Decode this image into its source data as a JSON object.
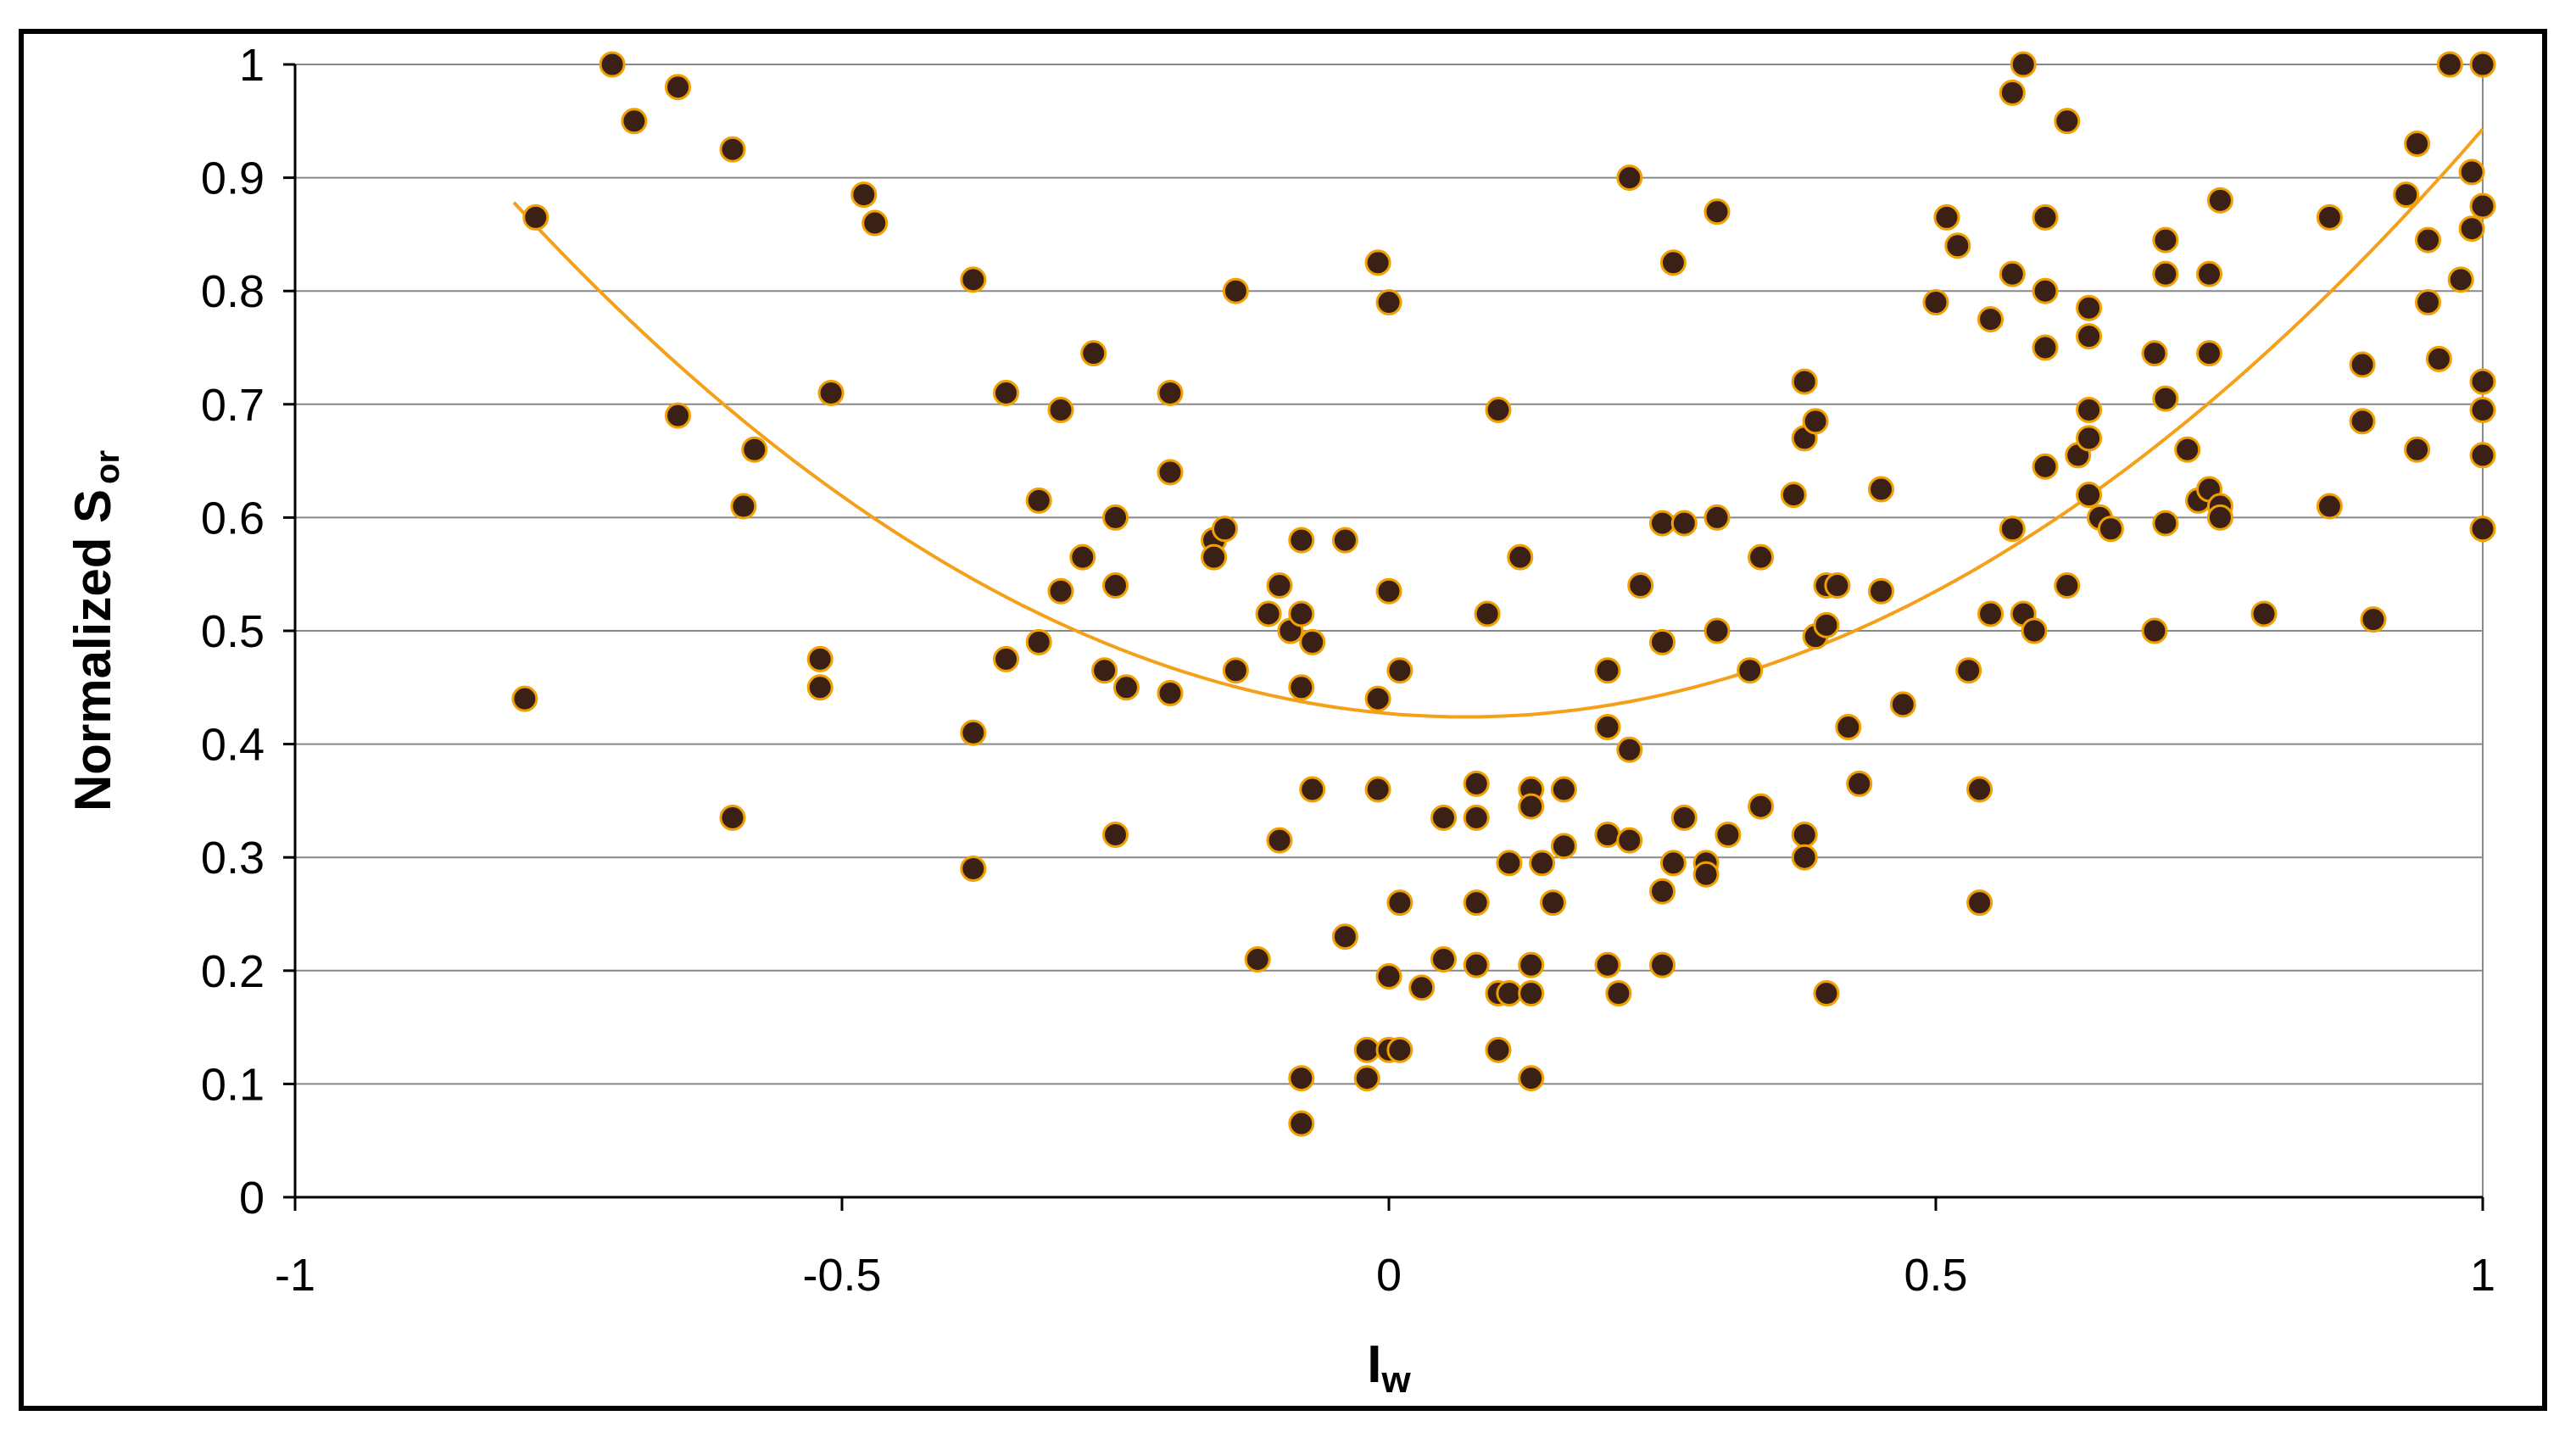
{
  "chart_data": {
    "type": "scatter",
    "title": "",
    "xlabel": "I",
    "xlabel_subscript": "w",
    "ylabel": "Normalized S",
    "ylabel_subscript": "or",
    "xlim": [
      -1,
      1
    ],
    "ylim": [
      0,
      1
    ],
    "xticks": [
      -1,
      -0.5,
      0,
      0.5,
      1
    ],
    "xtick_labels": [
      "-1",
      "-0.5",
      "0",
      "0.5",
      "1"
    ],
    "yticks": [
      0,
      0.1,
      0.2,
      0.3,
      0.4,
      0.5,
      0.6,
      0.7,
      0.8,
      0.9,
      1
    ],
    "ytick_labels": [
      "0",
      "0.1",
      "0.2",
      "0.3",
      "0.4",
      "0.5",
      "0.6",
      "0.7",
      "0.8",
      "0.9",
      "1"
    ],
    "grid": {
      "horizontal": true,
      "vertical": false
    },
    "legend": "none",
    "colors": {
      "marker_fill": "#3b2016",
      "marker_edge": "#f0a000",
      "trend": "#f5a01a",
      "grid": "#888888",
      "axis": "#000000"
    },
    "series": [
      {
        "kind": "points",
        "points": [
          [
            -0.79,
            0.44
          ],
          [
            -0.78,
            0.865
          ],
          [
            -0.71,
            1.0
          ],
          [
            -0.69,
            0.95
          ],
          [
            -0.65,
            0.98
          ],
          [
            -0.65,
            0.69
          ],
          [
            -0.6,
            0.925
          ],
          [
            -0.6,
            0.335
          ],
          [
            -0.59,
            0.61
          ],
          [
            -0.58,
            0.66
          ],
          [
            -0.52,
            0.475
          ],
          [
            -0.52,
            0.45
          ],
          [
            -0.51,
            0.71
          ],
          [
            -0.48,
            0.885
          ],
          [
            -0.47,
            0.86
          ],
          [
            -0.38,
            0.81
          ],
          [
            -0.38,
            0.41
          ],
          [
            -0.38,
            0.29
          ],
          [
            -0.35,
            0.71
          ],
          [
            -0.35,
            0.475
          ],
          [
            -0.32,
            0.615
          ],
          [
            -0.32,
            0.49
          ],
          [
            -0.3,
            0.695
          ],
          [
            -0.3,
            0.535
          ],
          [
            -0.28,
            0.565
          ],
          [
            -0.27,
            0.745
          ],
          [
            -0.26,
            0.465
          ],
          [
            -0.25,
            0.6
          ],
          [
            -0.25,
            0.54
          ],
          [
            -0.25,
            0.32
          ],
          [
            -0.24,
            0.45
          ],
          [
            -0.2,
            0.71
          ],
          [
            -0.2,
            0.64
          ],
          [
            -0.2,
            0.445
          ],
          [
            -0.16,
            0.58
          ],
          [
            -0.16,
            0.565
          ],
          [
            -0.15,
            0.59
          ],
          [
            -0.14,
            0.8
          ],
          [
            -0.14,
            0.465
          ],
          [
            -0.12,
            0.21
          ],
          [
            -0.11,
            0.515
          ],
          [
            -0.1,
            0.54
          ],
          [
            -0.1,
            0.315
          ],
          [
            -0.09,
            0.5
          ],
          [
            -0.08,
            0.58
          ],
          [
            -0.08,
            0.515
          ],
          [
            -0.08,
            0.45
          ],
          [
            -0.08,
            0.105
          ],
          [
            -0.08,
            0.065
          ],
          [
            -0.07,
            0.49
          ],
          [
            -0.07,
            0.36
          ],
          [
            -0.04,
            0.58
          ],
          [
            -0.04,
            0.23
          ],
          [
            -0.02,
            0.13
          ],
          [
            -0.02,
            0.105
          ],
          [
            -0.01,
            0.825
          ],
          [
            -0.01,
            0.44
          ],
          [
            -0.01,
            0.36
          ],
          [
            0.0,
            0.79
          ],
          [
            0.0,
            0.535
          ],
          [
            0.0,
            0.195
          ],
          [
            0.0,
            0.13
          ],
          [
            0.01,
            0.465
          ],
          [
            0.01,
            0.26
          ],
          [
            0.01,
            0.13
          ],
          [
            0.03,
            0.185
          ],
          [
            0.05,
            0.335
          ],
          [
            0.05,
            0.21
          ],
          [
            0.08,
            0.365
          ],
          [
            0.08,
            0.335
          ],
          [
            0.08,
            0.26
          ],
          [
            0.08,
            0.205
          ],
          [
            0.09,
            0.515
          ],
          [
            0.1,
            0.695
          ],
          [
            0.1,
            0.18
          ],
          [
            0.1,
            0.13
          ],
          [
            0.11,
            0.295
          ],
          [
            0.11,
            0.18
          ],
          [
            0.12,
            0.565
          ],
          [
            0.13,
            0.36
          ],
          [
            0.13,
            0.345
          ],
          [
            0.13,
            0.205
          ],
          [
            0.13,
            0.18
          ],
          [
            0.13,
            0.105
          ],
          [
            0.14,
            0.295
          ],
          [
            0.15,
            0.26
          ],
          [
            0.16,
            0.36
          ],
          [
            0.16,
            0.31
          ],
          [
            0.2,
            0.465
          ],
          [
            0.2,
            0.415
          ],
          [
            0.2,
            0.32
          ],
          [
            0.2,
            0.205
          ],
          [
            0.21,
            0.18
          ],
          [
            0.22,
            0.9
          ],
          [
            0.22,
            0.395
          ],
          [
            0.22,
            0.315
          ],
          [
            0.23,
            0.54
          ],
          [
            0.25,
            0.595
          ],
          [
            0.25,
            0.49
          ],
          [
            0.25,
            0.27
          ],
          [
            0.25,
            0.205
          ],
          [
            0.26,
            0.825
          ],
          [
            0.26,
            0.295
          ],
          [
            0.27,
            0.595
          ],
          [
            0.27,
            0.335
          ],
          [
            0.29,
            0.295
          ],
          [
            0.29,
            0.285
          ],
          [
            0.3,
            0.87
          ],
          [
            0.3,
            0.6
          ],
          [
            0.3,
            0.5
          ],
          [
            0.31,
            0.32
          ],
          [
            0.33,
            0.465
          ],
          [
            0.34,
            0.565
          ],
          [
            0.34,
            0.345
          ],
          [
            0.37,
            0.62
          ],
          [
            0.38,
            0.32
          ],
          [
            0.38,
            0.3
          ],
          [
            0.38,
            0.72
          ],
          [
            0.38,
            0.67
          ],
          [
            0.39,
            0.685
          ],
          [
            0.39,
            0.495
          ],
          [
            0.4,
            0.54
          ],
          [
            0.4,
            0.505
          ],
          [
            0.4,
            0.18
          ],
          [
            0.41,
            0.54
          ],
          [
            0.42,
            0.415
          ],
          [
            0.43,
            0.365
          ],
          [
            0.45,
            0.625
          ],
          [
            0.45,
            0.535
          ],
          [
            0.47,
            0.435
          ],
          [
            0.5,
            0.79
          ],
          [
            0.51,
            0.865
          ],
          [
            0.52,
            0.84
          ],
          [
            0.53,
            0.465
          ],
          [
            0.54,
            0.36
          ],
          [
            0.54,
            0.26
          ],
          [
            0.55,
            0.515
          ],
          [
            0.55,
            0.775
          ],
          [
            0.57,
            0.975
          ],
          [
            0.57,
            0.815
          ],
          [
            0.57,
            0.59
          ],
          [
            0.58,
            1.0
          ],
          [
            0.58,
            0.515
          ],
          [
            0.59,
            0.5
          ],
          [
            0.6,
            0.865
          ],
          [
            0.6,
            0.8
          ],
          [
            0.6,
            0.75
          ],
          [
            0.6,
            0.645
          ],
          [
            0.62,
            0.95
          ],
          [
            0.62,
            0.54
          ],
          [
            0.63,
            0.655
          ],
          [
            0.64,
            0.785
          ],
          [
            0.64,
            0.76
          ],
          [
            0.64,
            0.695
          ],
          [
            0.64,
            0.67
          ],
          [
            0.64,
            0.62
          ],
          [
            0.65,
            0.6
          ],
          [
            0.66,
            0.59
          ],
          [
            0.7,
            0.745
          ],
          [
            0.7,
            0.5
          ],
          [
            0.71,
            0.845
          ],
          [
            0.71,
            0.815
          ],
          [
            0.71,
            0.705
          ],
          [
            0.71,
            0.595
          ],
          [
            0.73,
            0.66
          ],
          [
            0.74,
            0.615
          ],
          [
            0.75,
            0.815
          ],
          [
            0.75,
            0.745
          ],
          [
            0.75,
            0.625
          ],
          [
            0.76,
            0.88
          ],
          [
            0.76,
            0.61
          ],
          [
            0.76,
            0.6
          ],
          [
            0.8,
            0.515
          ],
          [
            0.86,
            0.865
          ],
          [
            0.86,
            0.61
          ],
          [
            0.89,
            0.735
          ],
          [
            0.89,
            0.685
          ],
          [
            0.9,
            0.51
          ],
          [
            0.93,
            0.885
          ],
          [
            0.94,
            0.93
          ],
          [
            0.94,
            0.66
          ],
          [
            0.95,
            0.845
          ],
          [
            0.95,
            0.79
          ],
          [
            0.96,
            0.74
          ],
          [
            0.97,
            1.0
          ],
          [
            0.98,
            0.81
          ],
          [
            0.99,
            0.905
          ],
          [
            0.99,
            0.855
          ],
          [
            1.0,
            1.0
          ],
          [
            1.0,
            0.875
          ],
          [
            1.0,
            0.72
          ],
          [
            1.0,
            0.695
          ],
          [
            1.0,
            0.655
          ],
          [
            1.0,
            0.59
          ]
        ]
      },
      {
        "kind": "trendline",
        "fit": "polynomial-2",
        "x_range": [
          -0.8,
          1.0
        ],
        "coefficients": {
          "a": 0.424,
          "x0": 0.07,
          "k": 0.6
        }
      }
    ]
  }
}
